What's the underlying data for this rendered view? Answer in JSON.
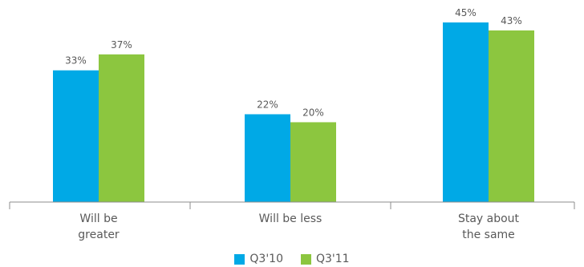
{
  "colors": {
    "q310": "#00A9E6",
    "q311": "#8CC63F",
    "axis": "#8C8C8C",
    "text": "#595959"
  },
  "chart_data": {
    "type": "bar",
    "categories": [
      "Will be\ngreater",
      "Will be less",
      "Stay about\nthe same"
    ],
    "series": [
      {
        "name": "Q3'10",
        "values": [
          33,
          22,
          45
        ],
        "labels": [
          "33%",
          "22%",
          "45%"
        ]
      },
      {
        "name": "Q3'11",
        "values": [
          37,
          20,
          43
        ],
        "labels": [
          "37%",
          "20%",
          "43%"
        ]
      }
    ],
    "ylim": [
      0,
      45
    ],
    "grid": false,
    "legend_position": "bottom",
    "title": "",
    "xlabel": "",
    "ylabel": ""
  }
}
